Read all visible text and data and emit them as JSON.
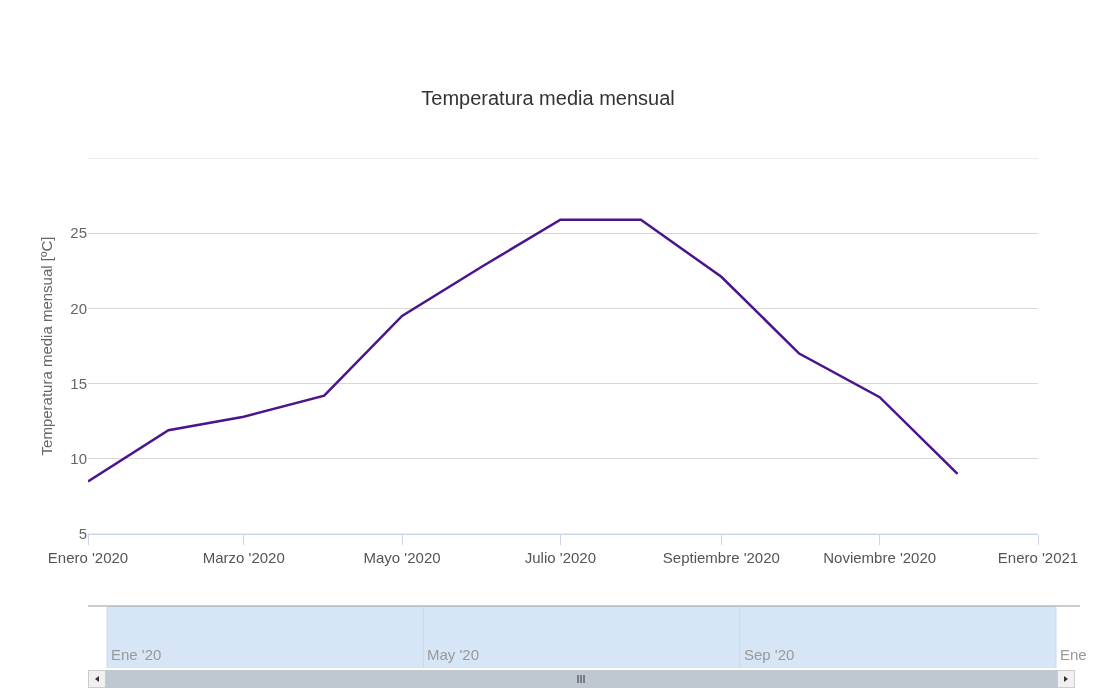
{
  "chart_data": [
    {
      "type": "line",
      "title": "Temperatura media mensual",
      "ylabel": "Temperatura media mensual [ºC]",
      "x": [
        "2020-01",
        "2020-02",
        "2020-03",
        "2020-04",
        "2020-05",
        "2020-06",
        "2020-07",
        "2020-08",
        "2020-09",
        "2020-10",
        "2020-11",
        "2020-12"
      ],
      "series": [
        {
          "color": "#4a148c",
          "values": [
            8.5,
            11.9,
            12.8,
            14.2,
            19.5,
            22.8,
            25.9,
            25.9,
            22.1,
            17.0,
            14.1,
            9.0
          ]
        }
      ],
      "xlim": [
        "2020-01",
        "2021-01"
      ],
      "xticks": [
        {
          "value": "2020-01",
          "label": "Enero '2020"
        },
        {
          "value": "2020-03",
          "label": "Marzo '2020"
        },
        {
          "value": "2020-05",
          "label": "Mayo '2020"
        },
        {
          "value": "2020-07",
          "label": "Julio '2020"
        },
        {
          "value": "2020-09",
          "label": "Septiembre '2020"
        },
        {
          "value": "2020-11",
          "label": "Noviembre '2020"
        },
        {
          "value": "2021-01",
          "label": "Enero '2021"
        }
      ],
      "ylim": [
        5,
        30
      ],
      "yticks": [
        5,
        10,
        15,
        20,
        25,
        {
          "value": 30,
          "label": null
        }
      ],
      "grid": "y",
      "marker": "none",
      "line_style": "solid"
    },
    {
      "type": "other",
      "annotations": [
        "Ene '20",
        "May '20",
        "Sep '20",
        "Ene"
      ]
    }
  ]
}
